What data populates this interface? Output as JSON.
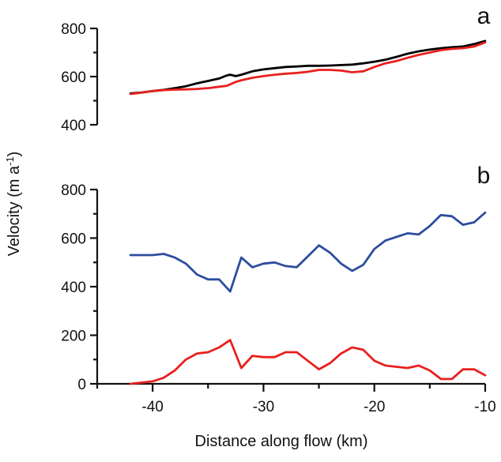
{
  "chart_data": [
    {
      "panel": "a",
      "type": "line",
      "xlabel": "",
      "ylabel": "",
      "xlim": [
        -45,
        -10
      ],
      "ylim": [
        400,
        800
      ],
      "yticks": [
        400,
        600,
        800
      ],
      "series": [
        {
          "color": "#000000",
          "x": [
            -42,
            -41,
            -40,
            -39,
            -38,
            -37,
            -36,
            -35,
            -34,
            -33.3,
            -33,
            -32.5,
            -32,
            -31,
            -30,
            -29,
            -28,
            -27,
            -26,
            -25,
            -24,
            -23,
            -22,
            -21,
            -20,
            -19,
            -18,
            -17,
            -16,
            -15,
            -14,
            -13,
            -12,
            -11,
            -10
          ],
          "y": [
            530,
            534,
            540,
            545,
            552,
            560,
            572,
            582,
            592,
            605,
            608,
            602,
            608,
            622,
            630,
            635,
            640,
            642,
            645,
            645,
            646,
            648,
            650,
            655,
            662,
            670,
            682,
            695,
            705,
            712,
            718,
            722,
            725,
            735,
            748
          ]
        },
        {
          "color": "#e8201e",
          "x": [
            -42,
            -41,
            -40,
            -39,
            -38,
            -37,
            -36,
            -35,
            -34,
            -33.3,
            -33,
            -32.5,
            -32,
            -31,
            -30,
            -29,
            -28,
            -27,
            -26,
            -25,
            -24,
            -23,
            -22,
            -21,
            -20,
            -19,
            -18,
            -17,
            -16,
            -15,
            -14,
            -13,
            -12,
            -11,
            -10
          ],
          "y": [
            528,
            533,
            540,
            544,
            546,
            547,
            549,
            552,
            558,
            562,
            568,
            578,
            585,
            595,
            602,
            608,
            612,
            615,
            620,
            628,
            628,
            625,
            618,
            622,
            640,
            655,
            665,
            678,
            690,
            700,
            710,
            715,
            718,
            725,
            742
          ]
        }
      ]
    },
    {
      "panel": "b",
      "type": "line",
      "xlabel": "Distance along flow  (km)",
      "ylabel": "Velocity  (m a⁻¹)",
      "xlim": [
        -45,
        -10
      ],
      "ylim": [
        0,
        800
      ],
      "xticks": [
        -40,
        -30,
        -20,
        -10
      ],
      "yticks": [
        0,
        200,
        400,
        600,
        800
      ],
      "series": [
        {
          "color": "#2e4da0",
          "x": [
            -42,
            -41,
            -40,
            -39,
            -38,
            -37,
            -36,
            -35,
            -34,
            -33,
            -32,
            -31,
            -30,
            -29,
            -28,
            -27,
            -26,
            -25,
            -24,
            -23,
            -22,
            -21,
            -20,
            -19,
            -18,
            -17,
            -16,
            -15,
            -14,
            -13,
            -12,
            -11,
            -10
          ],
          "y": [
            530,
            530,
            530,
            535,
            520,
            495,
            450,
            430,
            430,
            380,
            520,
            480,
            495,
            500,
            485,
            480,
            525,
            570,
            540,
            495,
            465,
            490,
            555,
            590,
            605,
            620,
            615,
            650,
            695,
            690,
            655,
            665,
            705
          ]
        },
        {
          "color": "#e8201e",
          "x": [
            -42,
            -41,
            -40,
            -39,
            -38,
            -37,
            -36,
            -35,
            -34,
            -33,
            -32,
            -31,
            -30,
            -29,
            -28,
            -27,
            -26,
            -25,
            -24,
            -23,
            -22,
            -21,
            -20,
            -19,
            -18,
            -17,
            -16,
            -15,
            -14,
            -13,
            -12,
            -11,
            -10
          ],
          "y": [
            0,
            5,
            10,
            25,
            55,
            100,
            125,
            130,
            150,
            180,
            65,
            115,
            110,
            110,
            130,
            130,
            95,
            60,
            85,
            125,
            150,
            140,
            95,
            75,
            70,
            65,
            75,
            55,
            20,
            20,
            60,
            60,
            35
          ]
        }
      ]
    }
  ],
  "labels": {
    "panel_a": "a",
    "panel_b": "b",
    "xlabel": "Distance along flow  (km)",
    "ylabel_main": "Velocity  (m a",
    "ylabel_sup": "-1",
    "ylabel_end": ")"
  }
}
